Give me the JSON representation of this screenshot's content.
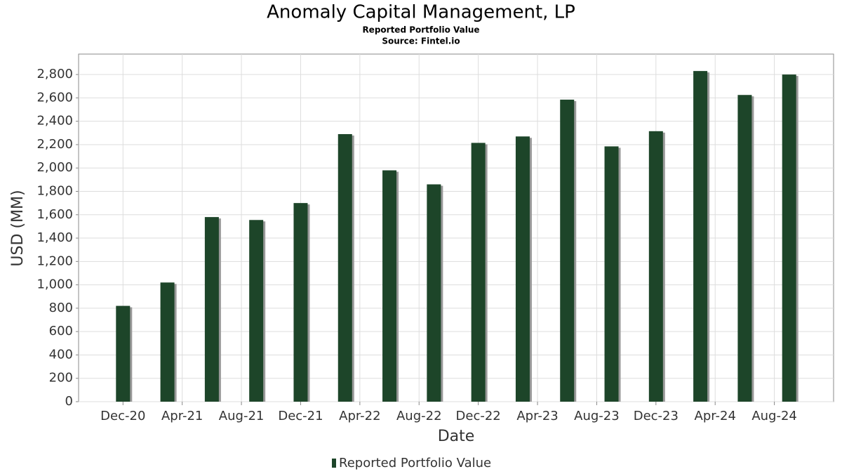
{
  "chart_data": {
    "type": "bar",
    "title": "Anomaly Capital Management, LP",
    "subtitle": "Reported Portfolio Value",
    "source": "Source: Fintel.io",
    "x_label": "Date",
    "y_label": "USD (MM)",
    "x": [
      "2020-12",
      "2021-03",
      "2021-06",
      "2021-09",
      "2021-12",
      "2022-03",
      "2022-06",
      "2022-09",
      "2022-12",
      "2023-03",
      "2023-06",
      "2023-09",
      "2023-12",
      "2024-03",
      "2024-06",
      "2024-09"
    ],
    "series": [
      {
        "name": "Reported Portfolio Value",
        "color": "#1d4529",
        "values": [
          820,
          1020,
          1580,
          1555,
          1700,
          2290,
          1980,
          1860,
          2215,
          2270,
          2585,
          2185,
          2315,
          2830,
          2625,
          2800
        ]
      }
    ],
    "xlim": [
      "2020-09",
      "2024-12"
    ],
    "xticks": [
      {
        "value": "2020-12",
        "label": "Dec-20"
      },
      {
        "value": "2021-04",
        "label": "Apr-21"
      },
      {
        "value": "2021-08",
        "label": "Aug-21"
      },
      {
        "value": "2021-12",
        "label": "Dec-21"
      },
      {
        "value": "2022-04",
        "label": "Apr-22"
      },
      {
        "value": "2022-08",
        "label": "Aug-22"
      },
      {
        "value": "2022-12",
        "label": "Dec-22"
      },
      {
        "value": "2023-04",
        "label": "Apr-23"
      },
      {
        "value": "2023-08",
        "label": "Aug-23"
      },
      {
        "value": "2023-12",
        "label": "Dec-23"
      },
      {
        "value": "2024-04",
        "label": "Apr-24"
      },
      {
        "value": "2024-08",
        "label": "Aug-24"
      }
    ],
    "ylim": [
      0,
      2975
    ],
    "yticks": [
      0,
      200,
      400,
      600,
      800,
      {
        "value": 1000,
        "label": "1,000"
      },
      {
        "value": 1200,
        "label": "1,200"
      },
      {
        "value": 1400,
        "label": "1,400"
      },
      {
        "value": 1600,
        "label": "1,600"
      },
      {
        "value": 1800,
        "label": "1,800"
      },
      {
        "value": 2000,
        "label": "2,000"
      },
      {
        "value": 2200,
        "label": "2,200"
      },
      {
        "value": 2400,
        "label": "2,400"
      },
      {
        "value": 2600,
        "label": "2,600"
      },
      {
        "value": 2800,
        "label": "2,800"
      }
    ],
    "grid": true,
    "legend": "bottom"
  }
}
